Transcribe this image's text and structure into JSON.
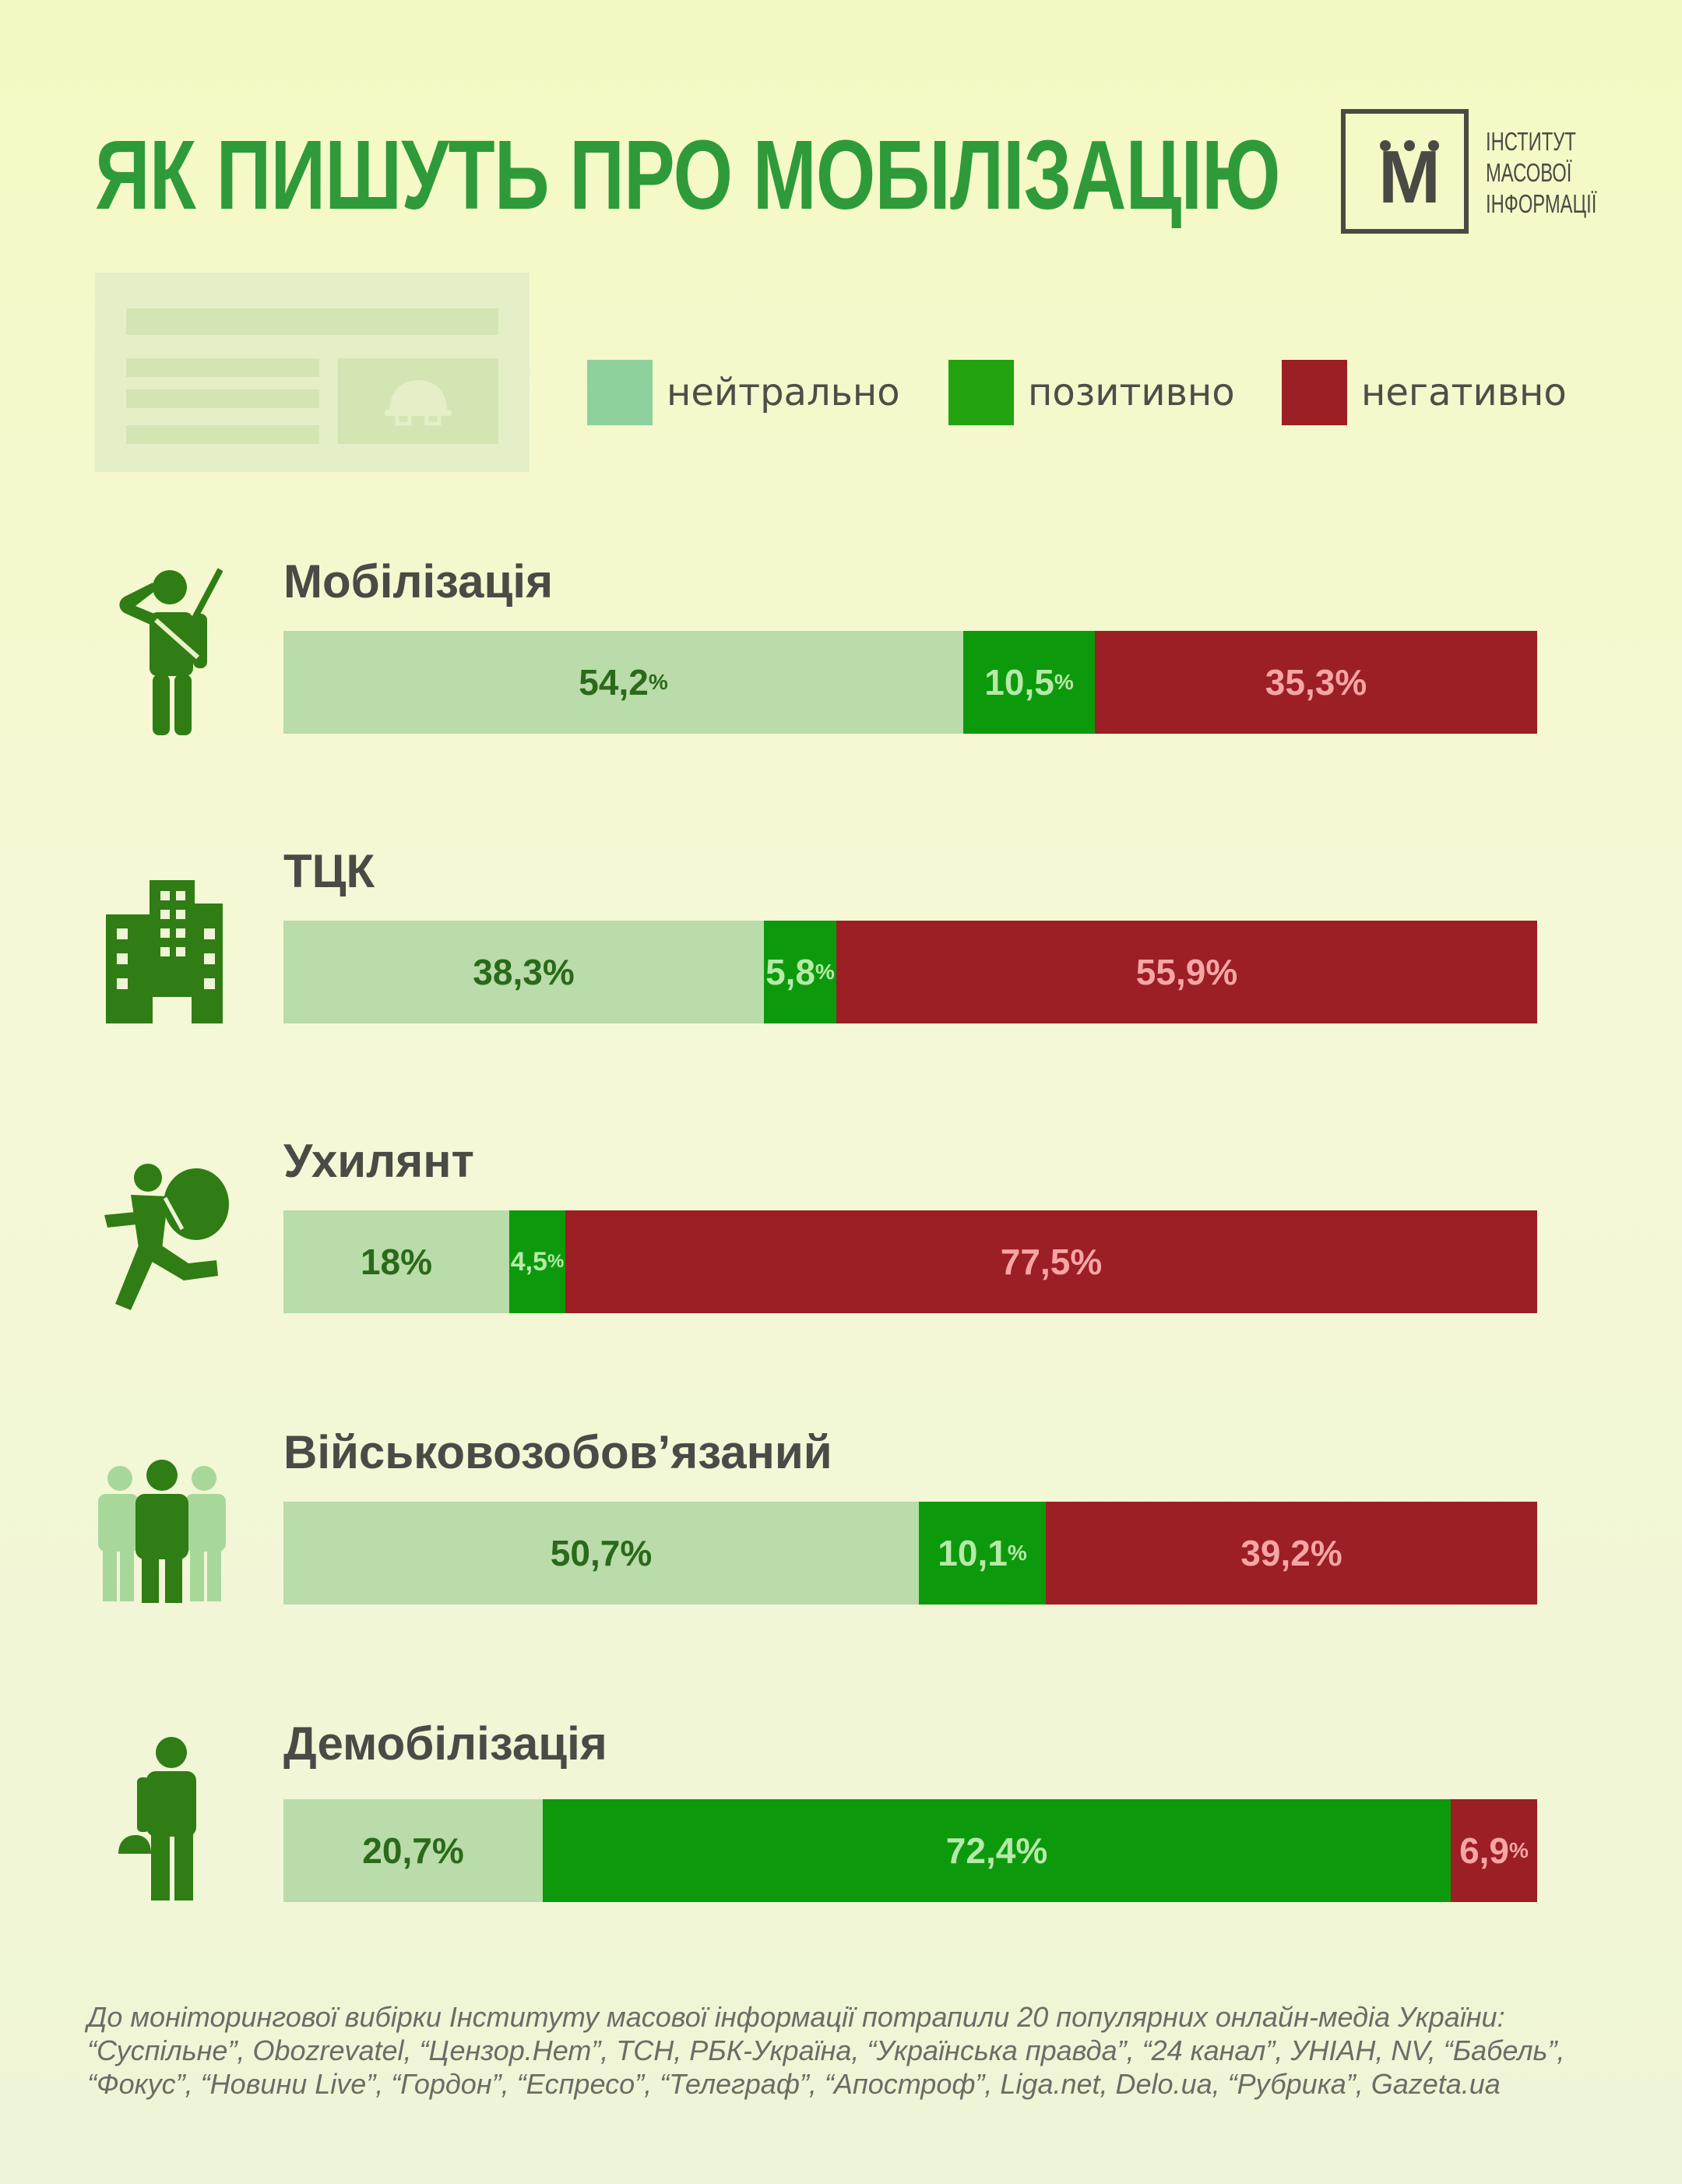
{
  "title": "ЯК ПИШУТЬ ПРО МОБІЛІЗАЦІЮ",
  "logo": {
    "letter": "М",
    "line1": "ІНСТИТУТ",
    "line2": "МАСОВОЇ",
    "line3": "ІНФОРМАЦІЇ"
  },
  "legend": [
    {
      "label": "нейтрально",
      "color": "#8ed19c"
    },
    {
      "label": "позитивно",
      "color": "#22a30f"
    },
    {
      "label": "негативно",
      "color": "#9b1f24"
    }
  ],
  "colors": {
    "neutral_bar": "#badbaa",
    "positive_bar": "#0c9a0c",
    "negative_bar": "#9b1f24",
    "icon": "#2f7d14",
    "title": "#2f9a3a"
  },
  "icons": [
    "soldier-saluting-icon",
    "building-icon",
    "running-man-with-bag-icon",
    "crowd-person-icon",
    "person-with-helmet-icon",
    "newspaper-helmet-icon"
  ],
  "chart_data": {
    "type": "bar",
    "orientation": "horizontal",
    "stacked": true,
    "stack_total": 100,
    "categories": [
      "Мобілізація",
      "ТЦК",
      "Ухилянт",
      "Військовозобов’язаний",
      "Демобілізація"
    ],
    "series": [
      {
        "name": "нейтрально",
        "values": [
          54.2,
          38.3,
          18,
          50.7,
          20.7
        ],
        "labels": [
          "54,2",
          "38,3",
          "18",
          "50,7",
          "20,7"
        ]
      },
      {
        "name": "позитивно",
        "values": [
          10.5,
          5.8,
          4.5,
          10.1,
          72.4
        ],
        "labels": [
          "10,5",
          "5,8",
          "4,5",
          "10,1",
          "72,4"
        ]
      },
      {
        "name": "негативно",
        "values": [
          35.3,
          55.9,
          77.5,
          39.2,
          6.9
        ],
        "labels": [
          "35,3",
          "55,9",
          "77,5",
          "39,2",
          "6,9"
        ]
      }
    ],
    "unit": "%",
    "legend_position": "top-right"
  },
  "footnote": "До моніторингової вибірки Інституту масової інформації потрапили 20 популярних онлайн-медіа України: “Суспільне”, Obozrevatel, “Цензор.Нет”, ТСН, РБК-Україна, “Українська правда”, “24 канал”, УНІАН, NV, “Бабель”, “Фокус”, “Новини Live”, “Гордон”, “Еспресо”, “Телеграф”, “Апостроф”, Liga.net, Delo.ua, “Рубрика”, Gazeta.ua"
}
